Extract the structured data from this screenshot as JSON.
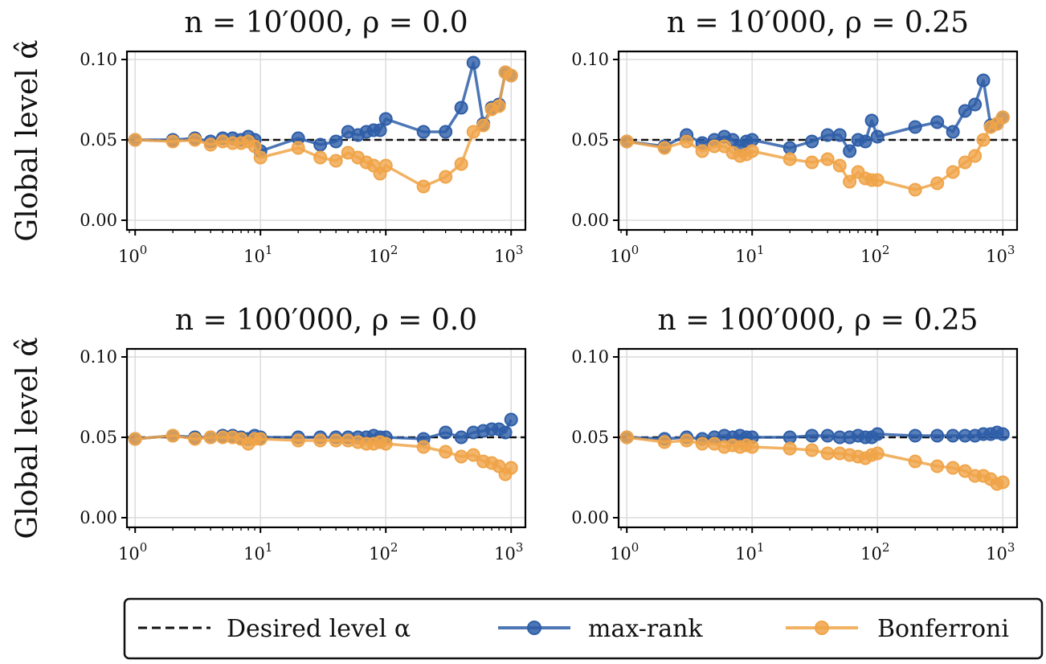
{
  "chart_data": {
    "type": "line",
    "shared_ylabel": "Global level α̂",
    "xscale": "log",
    "xlim": [
      0.86,
      1300
    ],
    "ylim": [
      -0.006,
      0.105
    ],
    "xtick_labels": [
      "10^0",
      "10^1",
      "10^2",
      "10^3"
    ],
    "ytick_labels": [
      "0.00",
      "0.05",
      "0.10"
    ],
    "yticks": [
      0.0,
      0.05,
      0.1
    ],
    "grid": true,
    "reference_line": {
      "name": "Desired level α",
      "y": 0.05,
      "style": "dashed"
    },
    "colors": {
      "max-rank": "#2E5EA8",
      "Bonferroni": "#F0A448",
      "reference": "#111111"
    },
    "legend": {
      "placement": "bottom",
      "entries": [
        "Desired level α",
        "max-rank",
        "Bonferroni"
      ]
    },
    "panels": [
      {
        "title": "n = 10′000, ρ = 0.0",
        "series": [
          {
            "name": "max-rank",
            "x": [
              1,
              2,
              3,
              4,
              5,
              6,
              7,
              8,
              9,
              10,
              20,
              30,
              40,
              50,
              60,
              70,
              80,
              90,
              100,
              200,
              300,
              400,
              500,
              600,
              700,
              800,
              900,
              1000
            ],
            "y": [
              0.05,
              0.05,
              0.051,
              0.049,
              0.051,
              0.051,
              0.05,
              0.052,
              0.05,
              0.043,
              0.051,
              0.047,
              0.049,
              0.055,
              0.053,
              0.055,
              0.056,
              0.056,
              0.063,
              0.055,
              0.055,
              0.07,
              0.098,
              0.06,
              0.07,
              0.072,
              0.092,
              0.09
            ]
          },
          {
            "name": "Bonferroni",
            "x": [
              1,
              2,
              3,
              4,
              5,
              6,
              7,
              8,
              9,
              10,
              20,
              30,
              40,
              50,
              60,
              70,
              80,
              90,
              100,
              200,
              300,
              400,
              500,
              600,
              700,
              800,
              900,
              1000
            ],
            "y": [
              0.05,
              0.049,
              0.05,
              0.047,
              0.049,
              0.048,
              0.048,
              0.049,
              0.046,
              0.039,
              0.045,
              0.039,
              0.037,
              0.042,
              0.039,
              0.036,
              0.034,
              0.029,
              0.034,
              0.021,
              0.027,
              0.035,
              0.055,
              0.059,
              0.069,
              0.071,
              0.092,
              0.09
            ]
          }
        ]
      },
      {
        "title": "n = 10′000, ρ = 0.25",
        "series": [
          {
            "name": "max-rank",
            "x": [
              1,
              2,
              3,
              4,
              5,
              6,
              7,
              8,
              9,
              10,
              20,
              30,
              40,
              50,
              60,
              70,
              80,
              90,
              100,
              200,
              300,
              400,
              500,
              600,
              700,
              800,
              900,
              1000
            ],
            "y": [
              0.049,
              0.046,
              0.053,
              0.048,
              0.05,
              0.052,
              0.05,
              0.046,
              0.049,
              0.05,
              0.045,
              0.049,
              0.053,
              0.053,
              0.043,
              0.05,
              0.049,
              0.062,
              0.052,
              0.058,
              0.061,
              0.055,
              0.068,
              0.072,
              0.087,
              0.059,
              0.06,
              0.064
            ]
          },
          {
            "name": "Bonferroni",
            "x": [
              1,
              2,
              3,
              4,
              5,
              6,
              7,
              8,
              9,
              10,
              20,
              30,
              40,
              50,
              60,
              70,
              80,
              90,
              100,
              200,
              300,
              400,
              500,
              600,
              700,
              800,
              900,
              1000
            ],
            "y": [
              0.049,
              0.045,
              0.049,
              0.043,
              0.046,
              0.046,
              0.042,
              0.04,
              0.041,
              0.043,
              0.038,
              0.036,
              0.038,
              0.034,
              0.024,
              0.03,
              0.026,
              0.025,
              0.025,
              0.019,
              0.023,
              0.03,
              0.036,
              0.04,
              0.05,
              0.058,
              0.06,
              0.064
            ]
          }
        ]
      },
      {
        "title": "n = 100′000, ρ = 0.0",
        "series": [
          {
            "name": "max-rank",
            "x": [
              1,
              2,
              3,
              4,
              5,
              6,
              7,
              8,
              9,
              10,
              20,
              30,
              40,
              50,
              60,
              70,
              80,
              90,
              100,
              200,
              300,
              400,
              500,
              600,
              700,
              800,
              900,
              1000
            ],
            "y": [
              0.049,
              0.051,
              0.05,
              0.05,
              0.051,
              0.051,
              0.05,
              0.049,
              0.051,
              0.05,
              0.05,
              0.05,
              0.05,
              0.05,
              0.05,
              0.05,
              0.051,
              0.05,
              0.05,
              0.049,
              0.053,
              0.05,
              0.053,
              0.054,
              0.055,
              0.055,
              0.053,
              0.061
            ]
          },
          {
            "name": "Bonferroni",
            "x": [
              1,
              2,
              3,
              4,
              5,
              6,
              7,
              8,
              9,
              10,
              20,
              30,
              40,
              50,
              60,
              70,
              80,
              90,
              100,
              200,
              300,
              400,
              500,
              600,
              700,
              800,
              900,
              1000
            ],
            "y": [
              0.049,
              0.051,
              0.049,
              0.05,
              0.05,
              0.05,
              0.049,
              0.046,
              0.049,
              0.049,
              0.048,
              0.048,
              0.048,
              0.048,
              0.047,
              0.046,
              0.046,
              0.047,
              0.046,
              0.044,
              0.041,
              0.038,
              0.039,
              0.035,
              0.034,
              0.032,
              0.027,
              0.031
            ]
          }
        ]
      },
      {
        "title": "n = 100′000, ρ = 0.25",
        "series": [
          {
            "name": "max-rank",
            "x": [
              1,
              2,
              3,
              4,
              5,
              6,
              7,
              8,
              9,
              10,
              20,
              30,
              40,
              50,
              60,
              70,
              80,
              90,
              100,
              200,
              300,
              400,
              500,
              600,
              700,
              800,
              900,
              1000
            ],
            "y": [
              0.05,
              0.049,
              0.05,
              0.049,
              0.05,
              0.051,
              0.05,
              0.051,
              0.05,
              0.05,
              0.05,
              0.051,
              0.051,
              0.05,
              0.05,
              0.051,
              0.05,
              0.05,
              0.052,
              0.051,
              0.051,
              0.051,
              0.051,
              0.051,
              0.052,
              0.052,
              0.053,
              0.052
            ]
          },
          {
            "name": "Bonferroni",
            "x": [
              1,
              2,
              3,
              4,
              5,
              6,
              7,
              8,
              9,
              10,
              20,
              30,
              40,
              50,
              60,
              70,
              80,
              90,
              100,
              200,
              300,
              400,
              500,
              600,
              700,
              800,
              900,
              1000
            ],
            "y": [
              0.05,
              0.047,
              0.048,
              0.046,
              0.046,
              0.044,
              0.045,
              0.044,
              0.045,
              0.044,
              0.043,
              0.042,
              0.04,
              0.04,
              0.039,
              0.038,
              0.037,
              0.039,
              0.04,
              0.035,
              0.032,
              0.031,
              0.029,
              0.026,
              0.026,
              0.024,
              0.021,
              0.022
            ]
          }
        ]
      }
    ]
  }
}
